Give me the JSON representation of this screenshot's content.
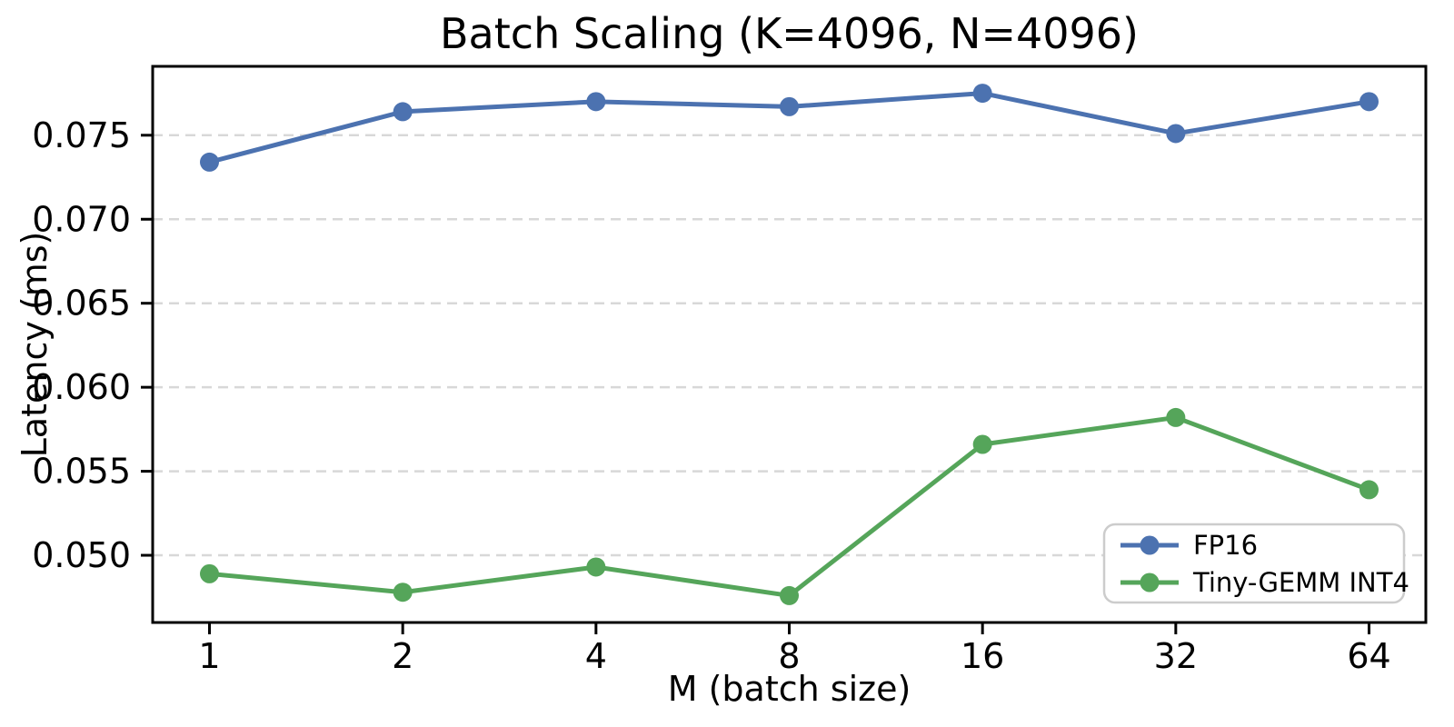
{
  "chart_data": {
    "type": "line",
    "title": "Batch Scaling (K=4096, N=4096)",
    "xlabel": "M (batch size)",
    "ylabel": "Latency (ms)",
    "x_scale": "log2",
    "categories": [
      1,
      2,
      4,
      8,
      16,
      32,
      64
    ],
    "xtick_labels": [
      "1",
      "2",
      "4",
      "8",
      "16",
      "32",
      "64"
    ],
    "series": [
      {
        "name": "FP16",
        "color": "#4c72b0",
        "values": [
          0.0734,
          0.0764,
          0.077,
          0.0767,
          0.0775,
          0.0751,
          0.077
        ]
      },
      {
        "name": "Tiny-GEMM INT4",
        "color": "#55a55a",
        "values": [
          0.0489,
          0.0478,
          0.0493,
          0.0476,
          0.0566,
          0.0582,
          0.0539
        ]
      }
    ],
    "yticks": [
      0.05,
      0.055,
      0.06,
      0.065,
      0.07,
      0.075
    ],
    "ytick_labels": [
      "0.050",
      "0.055",
      "0.060",
      "0.065",
      "0.070",
      "0.075"
    ],
    "ylim": [
      0.046,
      0.0791
    ],
    "grid": "horizontal-dashed",
    "legend": {
      "position": "lower right",
      "entries": [
        "FP16",
        "Tiny-GEMM INT4"
      ]
    }
  },
  "colors": {
    "background": "#ffffff",
    "spine": "#000000",
    "grid": "#d8d8d8",
    "text": "#000000",
    "legend_border": "#cccccc"
  }
}
